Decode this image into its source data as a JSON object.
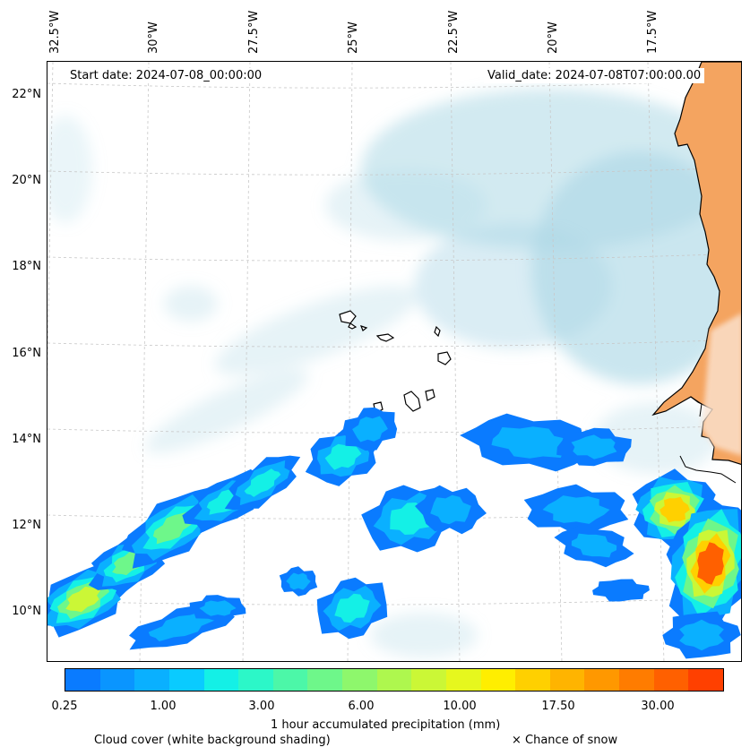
{
  "map": {
    "longitude_labels": [
      "32.5°W",
      "30°W",
      "27.5°W",
      "25°W",
      "22.5°W",
      "20°W",
      "17.5°W"
    ],
    "latitude_labels": [
      "22°N",
      "20°N",
      "18°N",
      "16°N",
      "14°N",
      "12°N",
      "10°N"
    ],
    "start_date": "Start date: 2024-07-08_00:00:00",
    "valid_date": "Valid_date: 2024-07-08T07:00:00.00",
    "land_color": "#f4a460",
    "cloud_color": "#add8e6"
  },
  "colorbar": {
    "colors": [
      "#0a7bff",
      "#0a95ff",
      "#0ab0ff",
      "#0acbff",
      "#14f0e6",
      "#2cf7c8",
      "#4cf7a8",
      "#6ef78a",
      "#8ef76c",
      "#aef74e",
      "#cbf736",
      "#e6f71e",
      "#ffee00",
      "#ffd000",
      "#ffb400",
      "#ff9800",
      "#ff7c00",
      "#ff6000",
      "#ff4000"
    ],
    "tick_labels": [
      "0.25",
      "1.00",
      "3.00",
      "6.00",
      "10.00",
      "17.50",
      "30.00"
    ],
    "label": "1 hour accumulated precipitation (mm)"
  },
  "legend": {
    "cloud_cover": "Cloud cover (white background shading)",
    "snow": "× Chance of snow"
  }
}
